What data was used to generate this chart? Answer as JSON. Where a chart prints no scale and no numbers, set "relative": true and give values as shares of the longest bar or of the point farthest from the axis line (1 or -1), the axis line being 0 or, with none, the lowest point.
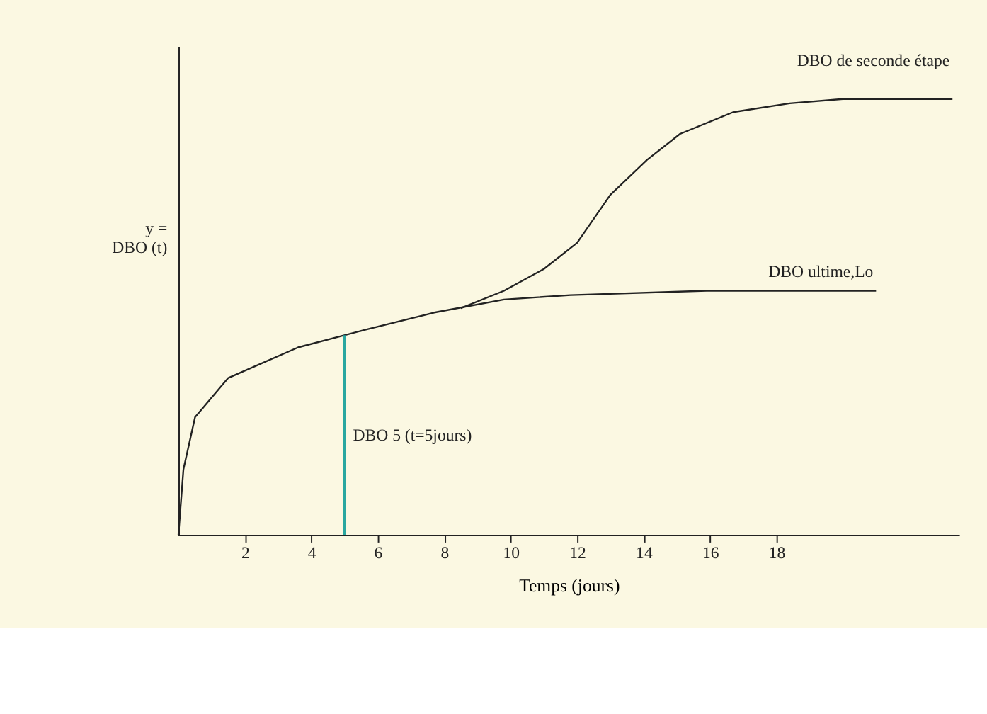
{
  "chart_data": {
    "type": "line",
    "relative": true,
    "xlabel": "Temps (jours)",
    "ylabel": "y =\nDBO (t)",
    "xlim": [
      0,
      23.5
    ],
    "xticks": [
      2,
      4,
      6,
      8,
      10,
      12,
      14,
      16,
      18
    ],
    "grid": false,
    "legend": false,
    "series": [
      {
        "name": "DBO ultime,Lo",
        "color": "#222222",
        "x": [
          0,
          0.15,
          0.5,
          1.5,
          3.6,
          5.6,
          7.7,
          9.8,
          11.8,
          15.9,
          21
        ],
        "values": [
          0,
          0.15,
          0.27,
          0.36,
          0.43,
          0.47,
          0.51,
          0.54,
          0.55,
          0.56,
          0.56
        ]
      },
      {
        "name": "DBO de seconde étape",
        "color": "#222222",
        "x": [
          8.5,
          9.8,
          11,
          12,
          13,
          14.1,
          15.1,
          16.7,
          18.4,
          20,
          23.3
        ],
        "values": [
          0.52,
          0.56,
          0.61,
          0.67,
          0.78,
          0.86,
          0.92,
          0.97,
          0.99,
          1.0,
          1.0
        ]
      }
    ],
    "ref_lines": [
      {
        "axis": "x",
        "value": 5,
        "label": "DBO 5 (t=5jours)",
        "color": "#2aa7a0"
      }
    ]
  }
}
